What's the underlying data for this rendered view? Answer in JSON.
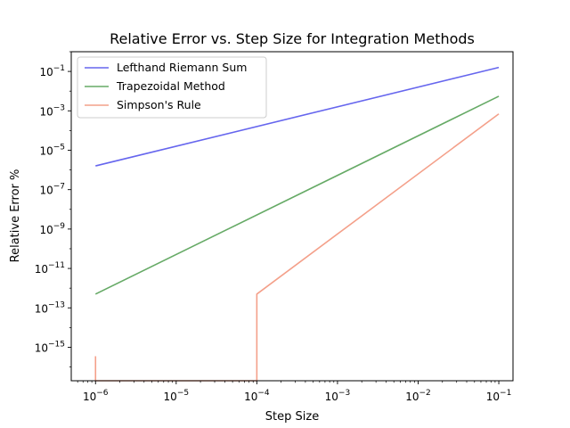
{
  "chart_data": {
    "type": "line",
    "title": "Relative Error vs. Step Size for Integration Methods",
    "xlabel": "Step Size",
    "ylabel": "Relative Error %",
    "x_scale": "log",
    "y_scale": "log",
    "xlim": [
      5e-07,
      0.15
    ],
    "ylim": [
      2e-17,
      1
    ],
    "x_ticks": [
      {
        "value": 1e-06,
        "base": "10",
        "exp": "−6"
      },
      {
        "value": 1e-05,
        "base": "10",
        "exp": "−5"
      },
      {
        "value": 0.0001,
        "base": "10",
        "exp": "−4"
      },
      {
        "value": 0.001,
        "base": "10",
        "exp": "−3"
      },
      {
        "value": 0.01,
        "base": "10",
        "exp": "−2"
      },
      {
        "value": 0.1,
        "base": "10",
        "exp": "−1"
      }
    ],
    "y_ticks": [
      {
        "value": 1e-15,
        "base": "10",
        "exp": "−15"
      },
      {
        "value": 1e-13,
        "base": "10",
        "exp": "−13"
      },
      {
        "value": 1e-11,
        "base": "10",
        "exp": "−11"
      },
      {
        "value": 1e-09,
        "base": "10",
        "exp": "−9"
      },
      {
        "value": 1e-07,
        "base": "10",
        "exp": "−7"
      },
      {
        "value": 1e-05,
        "base": "10",
        "exp": "−5"
      },
      {
        "value": 0.001,
        "base": "10",
        "exp": "−3"
      },
      {
        "value": 0.1,
        "base": "10",
        "exp": "−1"
      }
    ],
    "legend_position": "top-left",
    "grid": false,
    "series": [
      {
        "name": "Lefthand Riemann Sum",
        "color": "#6666ee",
        "points": [
          [
            1e-06,
            1.6e-06
          ],
          [
            0.1,
            0.16
          ]
        ]
      },
      {
        "name": "Trapezoidal Method",
        "color": "#66aa66",
        "points": [
          [
            1e-06,
            5e-13
          ],
          [
            0.1,
            0.0055
          ]
        ]
      },
      {
        "name": "Simpson's Rule",
        "color": "#f4a08a",
        "points": [
          [
            1e-06,
            3.5e-16
          ],
          [
            1e-06,
            2e-17
          ],
          [
            0.0001,
            2e-17
          ],
          [
            0.0001,
            5e-13
          ],
          [
            0.1,
            0.0007
          ]
        ]
      }
    ]
  }
}
